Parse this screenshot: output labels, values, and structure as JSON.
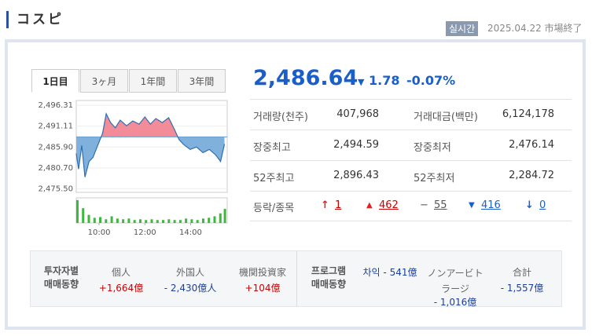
{
  "header": {
    "title": "コスピ",
    "badge": "실시간",
    "date": "2025.04.22",
    "status": "市場終了"
  },
  "tabs": [
    "1日目",
    "3ヶ月",
    "1年間",
    "3年間"
  ],
  "quote": {
    "price": "2,486.64",
    "change": "1.78",
    "change_pct": "-0.07%"
  },
  "stats": [
    [
      "거래량(천주)",
      "407,968",
      "거래대금(백만)",
      "6,124,178"
    ],
    [
      "장중최고",
      "2,494.59",
      "장중최저",
      "2,476.14"
    ],
    [
      "52주최고",
      "2,896.43",
      "52주최저",
      "2,284.72"
    ]
  ],
  "breadth": {
    "label": "등락/종목",
    "upper": "1",
    "up": "462",
    "flat": "55",
    "down": "416",
    "lower": "0"
  },
  "investors": {
    "title": [
      "투자자별",
      "매매동향"
    ],
    "items": [
      [
        "個人",
        "+1,664億"
      ],
      [
        "外国人",
        "- 2,430億人"
      ],
      [
        "機関投資家",
        "+104億"
      ]
    ]
  },
  "program": {
    "title": [
      "프로그램",
      "매매동향"
    ],
    "items": [
      [
        "차익",
        "- 541億"
      ],
      [
        "ノンアービトラージ",
        "- 1,016億"
      ],
      [
        "合計",
        "- 1,557億"
      ]
    ]
  },
  "chart_data": {
    "type": "line",
    "color": "#2f6fb0",
    "up_color": "#f28c98",
    "down_color": "#7fb1dc",
    "x": [
      9.0,
      9.1,
      9.24,
      9.38,
      9.56,
      9.73,
      9.98,
      10.15,
      10.31,
      10.5,
      10.71,
      10.92,
      11.2,
      11.47,
      11.75,
      12.0,
      12.24,
      12.48,
      12.76,
      13.04,
      13.29,
      13.5,
      13.7,
      13.98,
      14.26,
      14.54,
      14.82,
      15.1,
      15.31,
      15.48
    ],
    "values": [
      2484.3,
      2480.4,
      2486.3,
      2478.4,
      2482.3,
      2483.3,
      2486.9,
      2489.3,
      2494.2,
      2492.0,
      2490.7,
      2492.6,
      2491.2,
      2492.4,
      2491.6,
      2493.4,
      2491.6,
      2493.0,
      2492.0,
      2493.2,
      2490.3,
      2487.7,
      2486.5,
      2485.3,
      2485.9,
      2484.5,
      2485.3,
      2483.9,
      2482.3,
      2486.64
    ],
    "baseline": 2488.42,
    "xlim": [
      9,
      15.6
    ],
    "ylim": [
      2474.6,
      2497.5
    ],
    "xticks": [
      {
        "value": 10,
        "label": "10:00"
      },
      {
        "value": 12,
        "label": "12:00"
      },
      {
        "value": 14,
        "label": "14:00"
      }
    ],
    "yticks": [
      {
        "value": 2496.31,
        "label": "2,496.31"
      },
      {
        "value": 2491.11,
        "label": "2,491.11"
      },
      {
        "value": 2485.9,
        "label": "2,485.90"
      },
      {
        "value": 2480.7,
        "label": "2,480.70"
      },
      {
        "value": 2475.5,
        "label": "2,475.50"
      }
    ],
    "volume": {
      "color": "#3cb83c",
      "ylim": [
        0,
        34
      ],
      "x": [
        9.05,
        9.3,
        9.55,
        9.8,
        10.05,
        10.3,
        10.55,
        10.8,
        11.05,
        11.3,
        11.55,
        11.8,
        12.05,
        12.3,
        12.55,
        12.8,
        13.05,
        13.3,
        13.55,
        13.8,
        14.05,
        14.3,
        14.55,
        14.8,
        15.05,
        15.3,
        15.5
      ],
      "values": [
        31,
        20,
        11,
        7,
        8,
        5,
        9,
        6,
        5,
        6,
        4,
        5,
        4,
        5,
        4,
        4,
        5,
        4,
        4,
        6,
        5,
        4,
        6,
        7,
        9,
        13,
        19
      ]
    }
  }
}
